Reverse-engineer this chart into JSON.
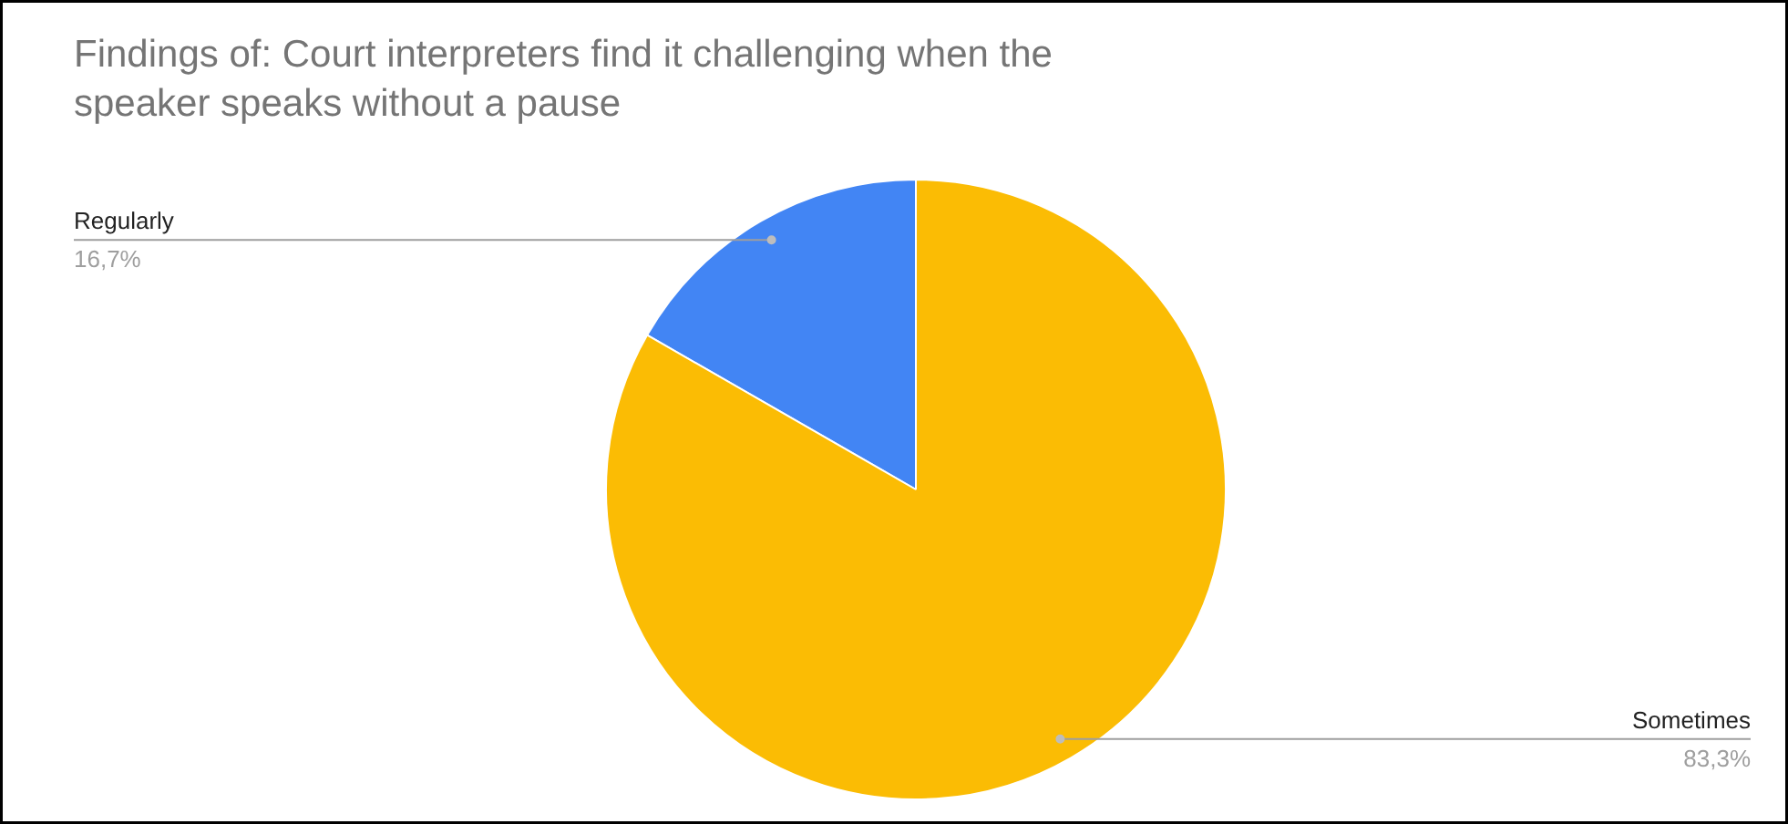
{
  "chart_data": {
    "type": "pie",
    "title": "Findings of: Court interpreters find it challenging when the speaker speaks without a pause",
    "categories": [
      "Regularly",
      "Sometimes"
    ],
    "values": [
      16.7,
      83.3
    ],
    "colors": [
      "#4285f4",
      "#fbbc04"
    ],
    "value_labels": [
      "16,7%",
      "83,3%"
    ]
  }
}
